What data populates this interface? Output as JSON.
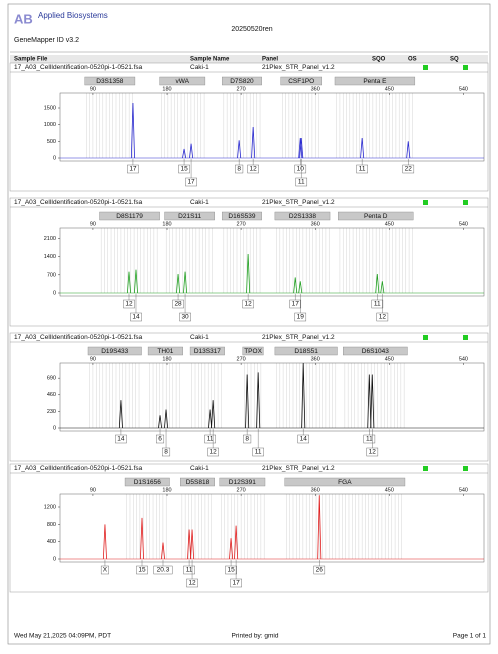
{
  "header": {
    "logo": "Applied Biosystems",
    "software": "GeneMapper ID v3.2",
    "project": "20250520ren"
  },
  "columns": [
    "Sample File",
    "Sample Name",
    "Panel",
    "SQO",
    "OS",
    "SQ"
  ],
  "chart_data": [
    {
      "type": "peaks",
      "sample_file": "17_A03_CellIdentification-0520pi-1-0521.fsa",
      "sample_name": "Caki-1",
      "panel": "21Plex_STR_Panel_v1.2",
      "color": "#2a2ad0",
      "xlim": [
        50,
        565
      ],
      "xticks": [
        90,
        180,
        270,
        360,
        450,
        540
      ],
      "ylim": [
        0,
        1950
      ],
      "yticks": [
        0,
        500,
        1000,
        1500
      ],
      "markers": [
        {
          "name": "D3S1358",
          "range": [
            80,
            141
          ]
        },
        {
          "name": "vWA",
          "range": [
            171,
            226
          ]
        },
        {
          "name": "D7S820",
          "range": [
            247,
            295
          ]
        },
        {
          "name": "CSF1PO",
          "range": [
            318,
            368
          ]
        },
        {
          "name": "Penta E",
          "range": [
            384,
            481
          ]
        }
      ],
      "x": [
        138.6,
        200.7,
        209.2,
        267.6,
        284.6,
        341.8,
        343,
        417,
        473
      ],
      "values": [
        1650,
        270,
        430,
        530,
        930,
        600,
        600,
        600,
        500
      ],
      "allele_labels": [
        "17",
        "15",
        "17",
        "8",
        "12",
        "10",
        "11",
        "11",
        "22"
      ]
    },
    {
      "type": "peaks",
      "sample_file": "17_A03_CellIdentification-0520pi-1-0521.fsa",
      "sample_name": "Caki-1",
      "panel": "21Plex_STR_Panel_v1.2",
      "color": "#22a022",
      "xlim": [
        50,
        565
      ],
      "xticks": [
        90,
        180,
        270,
        360,
        450,
        540
      ],
      "ylim": [
        0,
        2500
      ],
      "yticks": [
        0,
        700,
        1400,
        2100
      ],
      "markers": [
        {
          "name": "D8S1179",
          "range": [
            98,
            171
          ]
        },
        {
          "name": "D21S11",
          "range": [
            177,
            238
          ]
        },
        {
          "name": "D16S539",
          "range": [
            247,
            295
          ]
        },
        {
          "name": "D2S1338",
          "range": [
            311,
            378
          ]
        },
        {
          "name": "Penta D",
          "range": [
            388,
            479
          ]
        }
      ],
      "x": [
        133.8,
        142.3,
        193.4,
        201.9,
        278.5,
        335.7,
        341.8,
        435.4,
        441.5
      ],
      "values": [
        820,
        900,
        730,
        820,
        1500,
        600,
        450,
        730,
        450
      ],
      "allele_labels": [
        "12",
        "14",
        "28",
        "30",
        "12",
        "17",
        "19",
        "11",
        "12"
      ]
    },
    {
      "type": "peaks",
      "sample_file": "17_A03_CellIdentification-0520pi-1-0521.fsa",
      "sample_name": "Caki-1",
      "panel": "21Plex_STR_Panel_v1.2",
      "color": "#111111",
      "xlim": [
        50,
        565
      ],
      "xticks": [
        90,
        180,
        270,
        360,
        450,
        540
      ],
      "ylim": [
        0,
        900
      ],
      "yticks": [
        0,
        230,
        460,
        690
      ],
      "markers": [
        {
          "name": "D19S433",
          "range": [
            84,
            149
          ]
        },
        {
          "name": "TH01",
          "range": [
            157,
            199
          ]
        },
        {
          "name": "D13S317",
          "range": [
            208,
            250
          ]
        },
        {
          "name": "TPOX",
          "range": [
            272,
            297
          ]
        },
        {
          "name": "D18S51",
          "range": [
            311,
            387
          ]
        },
        {
          "name": "D6S1043",
          "range": [
            394,
            472
          ]
        }
      ],
      "x": [
        124,
        171.5,
        178.8,
        232.3,
        236,
        277.3,
        290.7,
        345.4,
        425.7,
        429.3
      ],
      "values": [
        385,
        175,
        255,
        255,
        385,
        740,
        770,
        900,
        740,
        740
      ],
      "allele_labels": [
        "14",
        "6",
        "8",
        "11",
        "12",
        "8",
        "11",
        "14",
        "11",
        "12"
      ]
    },
    {
      "type": "peaks",
      "sample_file": "17_A03_CellIdentification-0520pi-1-0521.fsa",
      "sample_name": "Caki-1",
      "panel": "21Plex_STR_Panel_v1.2",
      "color": "#e02020",
      "xlim": [
        50,
        565
      ],
      "xticks": [
        90,
        180,
        270,
        360,
        450,
        540
      ],
      "ylim": [
        0,
        1500
      ],
      "yticks": [
        0,
        400,
        800,
        1200
      ],
      "markers": [
        {
          "name": "D1S1656",
          "range": [
            129,
            183
          ]
        },
        {
          "name": "D5S818",
          "range": [
            196,
            238
          ]
        },
        {
          "name": "D12S391",
          "range": [
            244,
            299
          ]
        },
        {
          "name": "FGA",
          "range": [
            323,
            469
          ]
        }
      ],
      "x": [
        104.6,
        149.6,
        175.1,
        206.8,
        210.4,
        257.8,
        263.9,
        364.9
      ],
      "values": [
        800,
        950,
        380,
        680,
        680,
        480,
        770,
        1470
      ],
      "allele_labels": [
        "X",
        "15",
        "20.3",
        "11",
        "12",
        "15",
        "17",
        "26"
      ]
    }
  ],
  "footer": {
    "date": "Wed May 21,2025 04:09PM, PDT",
    "printed_by": "Printed by: gmid",
    "page": "Page 1 of 1"
  }
}
